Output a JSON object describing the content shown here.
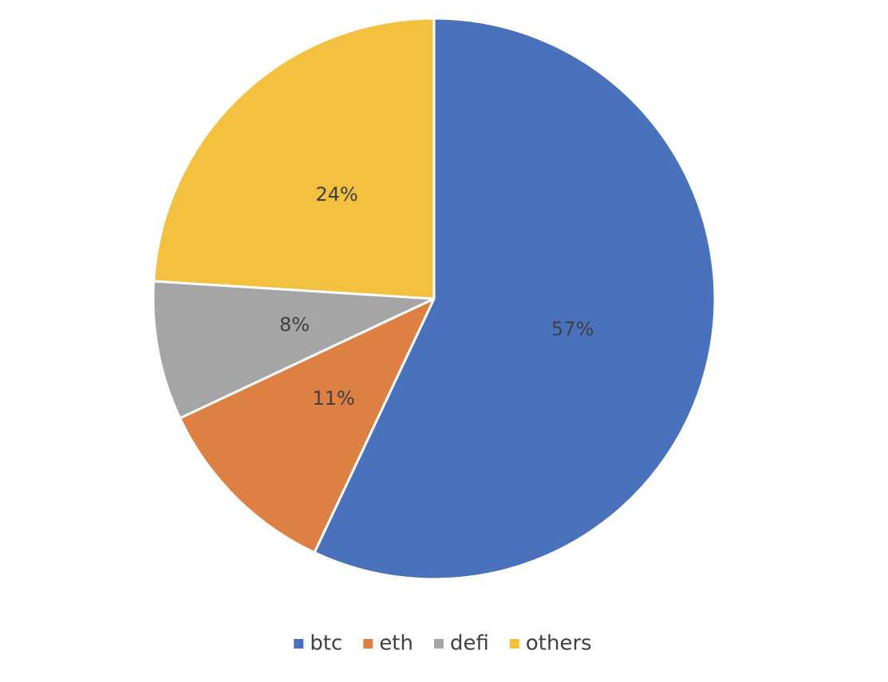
{
  "chart_data": {
    "type": "pie",
    "categories": [
      "btc",
      "eth",
      "defi",
      "others"
    ],
    "values": [
      57,
      11,
      8,
      24
    ],
    "value_labels": [
      "57%",
      "11%",
      "8%",
      "24%"
    ],
    "colors": [
      "#4a72bc",
      "#dd8043",
      "#a5a5a5",
      "#f4c040"
    ],
    "legend": "bottom"
  }
}
